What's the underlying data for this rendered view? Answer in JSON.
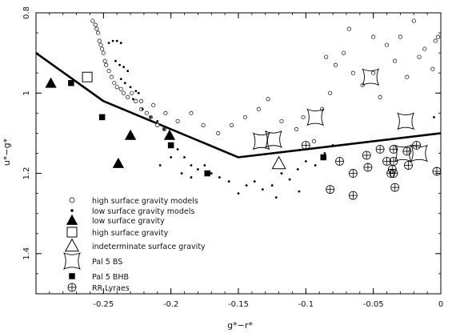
{
  "chart_data": {
    "type": "scatter",
    "xlabel": "g*−r*",
    "ylabel": "u*−g*",
    "xlim": [
      -0.3,
      0.0
    ],
    "ylim": [
      1.5,
      0.8
    ],
    "y_inverted": true,
    "x_ticks": [
      -0.25,
      -0.2,
      -0.15,
      -0.1,
      -0.05,
      0
    ],
    "x_tick_labels": [
      "-0.25",
      "-0.2",
      "-0.15",
      "-0.1",
      "-0.05",
      "0"
    ],
    "y_ticks": [
      0.8,
      1.0,
      1.2,
      1.4
    ],
    "y_tick_labels": [
      "0.8",
      "1",
      "1.2",
      "1.4"
    ],
    "legend_position": "bottom-left",
    "line": {
      "x": [
        -0.3,
        -0.25,
        -0.15,
        0.0
      ],
      "y": [
        0.9,
        1.02,
        1.16,
        1.1
      ]
    },
    "series": [
      {
        "name": "high surface gravity models",
        "marker": "small-open-circle",
        "points": [
          [
            -0.258,
            0.82
          ],
          [
            -0.256,
            0.83
          ],
          [
            -0.255,
            0.84
          ],
          [
            -0.254,
            0.85
          ],
          [
            -0.253,
            0.87
          ],
          [
            -0.252,
            0.88
          ],
          [
            -0.251,
            0.89
          ],
          [
            -0.25,
            0.9
          ],
          [
            -0.249,
            0.92
          ],
          [
            -0.248,
            0.93
          ],
          [
            -0.246,
            0.945
          ],
          [
            -0.244,
            0.96
          ],
          [
            -0.242,
            0.975
          ],
          [
            -0.24,
            0.985
          ],
          [
            -0.237,
            0.99
          ],
          [
            -0.235,
            1.0
          ],
          [
            -0.232,
            1.01
          ],
          [
            -0.229,
            1.0
          ],
          [
            -0.226,
            1.02
          ],
          [
            -0.222,
            1.04
          ],
          [
            -0.218,
            1.05
          ],
          [
            -0.215,
            1.06
          ],
          [
            -0.21,
            1.08
          ],
          [
            -0.205,
            1.09
          ],
          [
            -0.222,
            1.02
          ],
          [
            -0.213,
            1.03
          ],
          [
            -0.204,
            1.05
          ],
          [
            -0.195,
            1.07
          ],
          [
            -0.185,
            1.05
          ],
          [
            -0.176,
            1.08
          ],
          [
            -0.165,
            1.1
          ],
          [
            -0.155,
            1.08
          ],
          [
            -0.145,
            1.06
          ],
          [
            -0.135,
            1.04
          ],
          [
            -0.128,
            1.015
          ],
          [
            -0.118,
            1.07
          ],
          [
            -0.107,
            1.09
          ],
          [
            -0.102,
            1.06
          ],
          [
            -0.094,
            1.12
          ],
          [
            -0.088,
            1.04
          ],
          [
            -0.082,
            1.0
          ],
          [
            -0.078,
            0.93
          ],
          [
            -0.072,
            0.9
          ],
          [
            -0.065,
            0.95
          ],
          [
            -0.058,
            0.98
          ],
          [
            -0.05,
            0.95
          ],
          [
            -0.045,
            1.01
          ],
          [
            -0.04,
            0.88
          ],
          [
            -0.034,
            0.92
          ],
          [
            -0.03,
            0.86
          ],
          [
            -0.025,
            0.96
          ],
          [
            -0.02,
            0.82
          ],
          [
            -0.016,
            0.91
          ],
          [
            -0.012,
            0.89
          ],
          [
            -0.006,
            0.94
          ],
          [
            -0.004,
            0.87
          ],
          [
            -0.002,
            0.86
          ],
          [
            -0.05,
            0.86
          ],
          [
            -0.068,
            0.84
          ],
          [
            -0.085,
            0.91
          ]
        ]
      },
      {
        "name": "low surface gravity models",
        "marker": "dot",
        "points": [
          [
            -0.246,
            0.875
          ],
          [
            -0.243,
            0.87
          ],
          [
            -0.24,
            0.87
          ],
          [
            -0.237,
            0.875
          ],
          [
            -0.241,
            0.92
          ],
          [
            -0.238,
            0.93
          ],
          [
            -0.235,
            0.935
          ],
          [
            -0.232,
            0.945
          ],
          [
            -0.237,
            0.965
          ],
          [
            -0.234,
            0.975
          ],
          [
            -0.23,
            0.985
          ],
          [
            -0.226,
            0.995
          ],
          [
            -0.224,
            1.0
          ],
          [
            -0.228,
            1.015
          ],
          [
            -0.221,
            1.04
          ],
          [
            -0.215,
            1.06
          ],
          [
            -0.21,
            1.07
          ],
          [
            -0.205,
            1.09
          ],
          [
            -0.2,
            1.11
          ],
          [
            -0.195,
            1.14
          ],
          [
            -0.19,
            1.16
          ],
          [
            -0.185,
            1.18
          ],
          [
            -0.18,
            1.19
          ],
          [
            -0.175,
            1.18
          ],
          [
            -0.17,
            1.2
          ],
          [
            -0.164,
            1.21
          ],
          [
            -0.157,
            1.22
          ],
          [
            -0.15,
            1.25
          ],
          [
            -0.144,
            1.23
          ],
          [
            -0.138,
            1.22
          ],
          [
            -0.132,
            1.24
          ],
          [
            -0.125,
            1.23
          ],
          [
            -0.118,
            1.2
          ],
          [
            -0.112,
            1.215
          ],
          [
            -0.122,
            1.26
          ],
          [
            -0.106,
            1.19
          ],
          [
            -0.1,
            1.17
          ],
          [
            -0.093,
            1.18
          ],
          [
            -0.086,
            1.15
          ],
          [
            -0.08,
            1.13
          ],
          [
            -0.105,
            1.245
          ],
          [
            -0.2,
            1.16
          ],
          [
            -0.208,
            1.18
          ],
          [
            -0.192,
            1.2
          ],
          [
            -0.185,
            1.21
          ],
          [
            -0.005,
            1.06
          ]
        ]
      },
      {
        "name": "low surface gravity",
        "marker": "filled-triangle",
        "points": [
          [
            -0.289,
            0.975
          ],
          [
            -0.239,
            1.175
          ],
          [
            -0.23,
            1.105
          ],
          [
            -0.201,
            1.105
          ]
        ]
      },
      {
        "name": "high surface gravity",
        "marker": "open-square",
        "points": [
          [
            -0.262,
            0.96
          ]
        ]
      },
      {
        "name": "indeterminate surface gravity",
        "marker": "open-triangle",
        "points": [
          [
            -0.12,
            1.175
          ]
        ]
      },
      {
        "name": "Pal 5 BS",
        "marker": "concave-square",
        "points": [
          [
            -0.052,
            0.96
          ],
          [
            -0.093,
            1.06
          ],
          [
            -0.133,
            1.12
          ],
          [
            -0.124,
            1.115
          ],
          [
            -0.026,
            1.07
          ],
          [
            -0.016,
            1.15
          ],
          [
            -0.028,
            1.15
          ]
        ]
      },
      {
        "name": "Pal 5 BHB",
        "marker": "filled-square",
        "points": [
          [
            -0.274,
            0.975
          ],
          [
            -0.251,
            1.06
          ],
          [
            -0.2,
            1.13
          ],
          [
            -0.173,
            1.2
          ],
          [
            -0.087,
            1.16
          ]
        ]
      },
      {
        "name": "RR Lyraes",
        "marker": "circle-plus",
        "points": [
          [
            -0.1,
            1.13
          ],
          [
            -0.075,
            1.17
          ],
          [
            -0.065,
            1.2
          ],
          [
            -0.065,
            1.255
          ],
          [
            -0.055,
            1.155
          ],
          [
            -0.054,
            1.185
          ],
          [
            -0.045,
            1.14
          ],
          [
            -0.04,
            1.17
          ],
          [
            -0.037,
            1.2
          ],
          [
            -0.035,
            1.17
          ],
          [
            -0.036,
            1.19
          ],
          [
            -0.035,
            1.2
          ],
          [
            -0.034,
            1.235
          ],
          [
            -0.035,
            1.14
          ],
          [
            -0.025,
            1.145
          ],
          [
            -0.018,
            1.13
          ],
          [
            -0.003,
            1.195
          ],
          [
            -0.024,
            1.18
          ],
          [
            -0.082,
            1.24
          ]
        ]
      }
    ]
  }
}
